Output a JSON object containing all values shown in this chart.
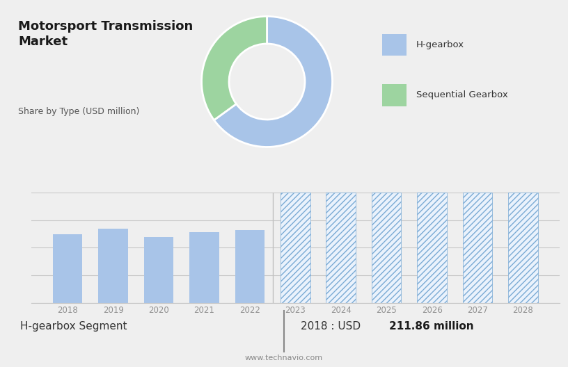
{
  "title": "Motorsport Transmission\nMarket",
  "subtitle": "Share by Type (USD million)",
  "pie_values": [
    65,
    35
  ],
  "pie_colors": [
    "#a8c4e8",
    "#9dd4a0"
  ],
  "pie_labels": [
    "H-gearbox",
    "Sequential Gearbox"
  ],
  "bar_years_solid": [
    2018,
    2019,
    2020,
    2021,
    2022
  ],
  "bar_values_solid": [
    62,
    67,
    60,
    64,
    66
  ],
  "bar_years_hatched": [
    2023,
    2024,
    2025,
    2026,
    2027,
    2028
  ],
  "bar_values_hatched": [
    100,
    100,
    100,
    100,
    100,
    100
  ],
  "bar_color_solid": "#a8c4e8",
  "bar_color_hatched_face": "#eaf2fc",
  "bar_color_hatched_edge": "#7aaad4",
  "hatch_pattern": "////",
  "top_bg_color": "#d9d9d9",
  "bottom_bg_color": "#efefef",
  "separator_color": "#c0c0c0",
  "footer_text": "www.technavio.com",
  "bottom_label_left": "H-gearbox Segment",
  "bottom_label_year": "2018 : USD ",
  "bottom_label_value": "211.86 million",
  "grid_color": "#c8c8c8",
  "axis_label_color": "#909090",
  "ylim": [
    0,
    100
  ],
  "bar_width": 0.65
}
